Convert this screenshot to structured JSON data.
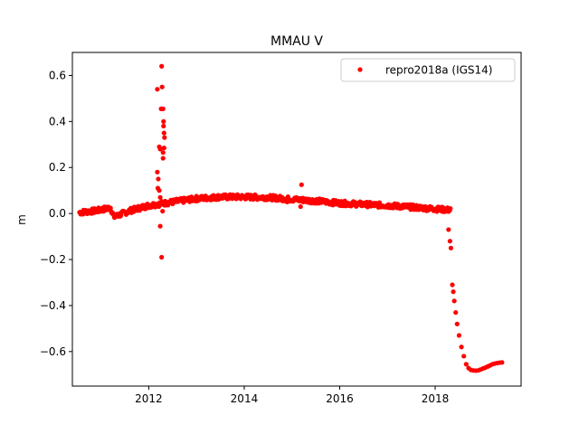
{
  "chart_data": {
    "type": "scatter",
    "title": "MMAU V",
    "xlabel": "",
    "ylabel": "m",
    "xlim": [
      2010.4,
      2019.8
    ],
    "ylim": [
      -0.75,
      0.7
    ],
    "x_ticks": [
      2012,
      2014,
      2016,
      2018
    ],
    "x_tick_labels": [
      "2012",
      "2014",
      "2016",
      "2018"
    ],
    "y_ticks": [
      -0.6,
      -0.4,
      -0.2,
      0.0,
      0.2,
      0.4,
      0.6
    ],
    "y_tick_labels": [
      "−0.6",
      "−0.4",
      "−0.2",
      "0.0",
      "0.2",
      "0.4",
      "0.6"
    ],
    "grid": false,
    "legend_position": "top-right",
    "series": [
      {
        "name": "repro2018a (IGS14)",
        "color": "#ff0000",
        "marker": "circle",
        "trend": [
          [
            2010.55,
            0.005
          ],
          [
            2010.9,
            0.012
          ],
          [
            2011.2,
            0.025
          ],
          [
            2011.27,
            -0.015
          ],
          [
            2011.6,
            0.012
          ],
          [
            2012.0,
            0.035
          ],
          [
            2012.5,
            0.05
          ],
          [
            2013.0,
            0.065
          ],
          [
            2013.5,
            0.072
          ],
          [
            2014.0,
            0.072
          ],
          [
            2014.5,
            0.07
          ],
          [
            2015.0,
            0.062
          ],
          [
            2015.5,
            0.055
          ],
          [
            2016.0,
            0.045
          ],
          [
            2016.5,
            0.04
          ],
          [
            2017.0,
            0.035
          ],
          [
            2017.5,
            0.028
          ],
          [
            2018.0,
            0.02
          ],
          [
            2018.33,
            0.015
          ]
        ],
        "points": [
          [
            2012.18,
            0.54
          ],
          [
            2012.22,
            0.29
          ],
          [
            2012.24,
            0.28
          ],
          [
            2012.26,
            0.455
          ],
          [
            2012.27,
            0.64
          ],
          [
            2012.28,
            0.55
          ],
          [
            2012.3,
            0.455
          ],
          [
            2012.31,
            0.4
          ],
          [
            2012.31,
            0.38
          ],
          [
            2012.32,
            0.35
          ],
          [
            2012.33,
            0.33
          ],
          [
            2012.32,
            0.285
          ],
          [
            2012.3,
            0.265
          ],
          [
            2012.3,
            0.24
          ],
          [
            2012.18,
            0.18
          ],
          [
            2012.2,
            0.15
          ],
          [
            2012.19,
            0.11
          ],
          [
            2012.22,
            0.1
          ],
          [
            2012.24,
            0.07
          ],
          [
            2012.29,
            0.01
          ],
          [
            2012.24,
            -0.055
          ],
          [
            2012.27,
            -0.19
          ],
          [
            2015.2,
            0.125
          ],
          [
            2015.18,
            0.03
          ],
          [
            2014.9,
            0.05
          ],
          [
            2018.28,
            -0.07
          ],
          [
            2018.31,
            -0.12
          ],
          [
            2018.33,
            -0.15
          ],
          [
            2018.36,
            -0.31
          ],
          [
            2018.38,
            -0.34
          ],
          [
            2018.4,
            -0.38
          ],
          [
            2018.43,
            -0.43
          ],
          [
            2018.46,
            -0.48
          ],
          [
            2018.5,
            -0.53
          ],
          [
            2018.55,
            -0.58
          ],
          [
            2018.6,
            -0.62
          ],
          [
            2018.65,
            -0.655
          ],
          [
            2018.7,
            -0.672
          ],
          [
            2018.75,
            -0.68
          ],
          [
            2018.8,
            -0.682
          ],
          [
            2018.85,
            -0.683
          ],
          [
            2018.9,
            -0.682
          ],
          [
            2018.95,
            -0.678
          ],
          [
            2019.0,
            -0.674
          ],
          [
            2019.05,
            -0.67
          ],
          [
            2019.1,
            -0.665
          ],
          [
            2019.15,
            -0.66
          ],
          [
            2019.2,
            -0.655
          ],
          [
            2019.25,
            -0.652
          ],
          [
            2019.3,
            -0.65
          ],
          [
            2019.35,
            -0.648
          ],
          [
            2019.4,
            -0.647
          ]
        ]
      }
    ]
  }
}
